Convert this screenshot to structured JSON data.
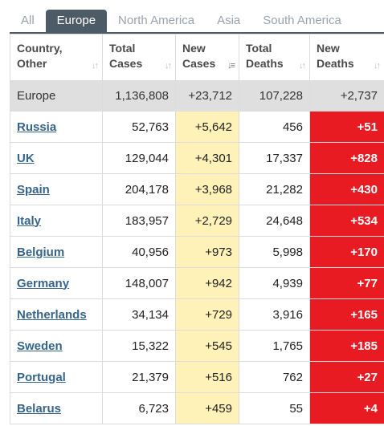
{
  "tabs": [
    "All",
    "Europe",
    "North America",
    "Asia",
    "South America"
  ],
  "active_tab": "Europe",
  "headers": {
    "country": [
      "Country,",
      "Other"
    ],
    "total_cases": [
      "Total",
      "Cases"
    ],
    "new_cases": [
      "New",
      "Cases"
    ],
    "total_deaths": [
      "Total",
      "Deaths"
    ],
    "new_deaths": [
      "New",
      "Deaths"
    ]
  },
  "total_row": {
    "country": "Europe",
    "total_cases": "1,136,808",
    "new_cases": "+23,712",
    "total_deaths": "107,228",
    "new_deaths": "+2,737"
  },
  "rows": [
    {
      "country": "Russia",
      "total_cases": "52,763",
      "new_cases": "+5,642",
      "total_deaths": "456",
      "new_deaths": "+51"
    },
    {
      "country": "UK",
      "total_cases": "129,044",
      "new_cases": "+4,301",
      "total_deaths": "17,337",
      "new_deaths": "+828"
    },
    {
      "country": "Spain",
      "total_cases": "204,178",
      "new_cases": "+3,968",
      "total_deaths": "21,282",
      "new_deaths": "+430"
    },
    {
      "country": "Italy",
      "total_cases": "183,957",
      "new_cases": "+2,729",
      "total_deaths": "24,648",
      "new_deaths": "+534"
    },
    {
      "country": "Belgium",
      "total_cases": "40,956",
      "new_cases": "+973",
      "total_deaths": "5,998",
      "new_deaths": "+170"
    },
    {
      "country": "Germany",
      "total_cases": "148,007",
      "new_cases": "+942",
      "total_deaths": "4,939",
      "new_deaths": "+77"
    },
    {
      "country": "Netherlands",
      "total_cases": "34,134",
      "new_cases": "+729",
      "total_deaths": "3,916",
      "new_deaths": "+165"
    },
    {
      "country": "Sweden",
      "total_cases": "15,322",
      "new_cases": "+545",
      "total_deaths": "1,765",
      "new_deaths": "+185"
    },
    {
      "country": "Portugal",
      "total_cases": "21,379",
      "new_cases": "+516",
      "total_deaths": "762",
      "new_deaths": "+27"
    },
    {
      "country": "Belarus",
      "total_cases": "6,723",
      "new_cases": "+459",
      "total_deaths": "55",
      "new_deaths": "+4"
    }
  ],
  "colors": {
    "active_tab": "#4d5b66",
    "new_cases_bg": "#fff2b8",
    "new_deaths_bg": "#e81b23",
    "link": "#36648b",
    "total_row_bg": "#dfdfdf"
  }
}
